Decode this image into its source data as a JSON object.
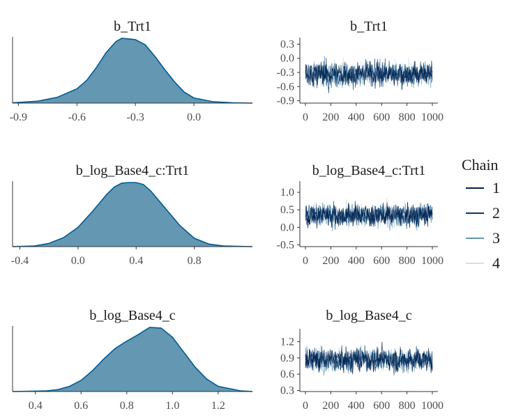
{
  "colors": {
    "density_fill": "#6497b1",
    "density_line": "#005b96",
    "axis": "#333333",
    "text": "#1a1a1a",
    "chains": [
      "#011f4b",
      "#03396c",
      "#6497b1",
      "#d1e1ec"
    ]
  },
  "legend": {
    "title": "Chain",
    "items": [
      {
        "label": "1",
        "color": "#011f4b"
      },
      {
        "label": "2",
        "color": "#03396c"
      },
      {
        "label": "3",
        "color": "#6497b1"
      },
      {
        "label": "4",
        "color": "#d1e1ec"
      }
    ]
  },
  "chart_data": [
    {
      "type": "area",
      "role": "density",
      "title": "b_Trt1",
      "parameter": "b_Trt1",
      "xlim": [
        -0.93,
        0.3
      ],
      "x_ticks": [
        -0.9,
        -0.6,
        -0.3,
        0.0
      ],
      "x_tick_labels": [
        "-0.9",
        "-0.6",
        "-0.3",
        "0.0"
      ],
      "x": [
        -0.93,
        -0.8,
        -0.7,
        -0.6,
        -0.55,
        -0.5,
        -0.45,
        -0.4,
        -0.37,
        -0.33,
        -0.3,
        -0.25,
        -0.2,
        -0.15,
        -0.1,
        -0.05,
        0.0,
        0.1,
        0.2,
        0.3
      ],
      "y": [
        0.005,
        0.03,
        0.09,
        0.22,
        0.35,
        0.55,
        0.78,
        0.95,
        1.0,
        0.99,
        0.98,
        0.9,
        0.72,
        0.52,
        0.33,
        0.17,
        0.08,
        0.02,
        0.005,
        0.0
      ]
    },
    {
      "type": "line",
      "role": "trace",
      "title": "b_Trt1",
      "parameter": "b_Trt1",
      "xlim": [
        0,
        1000
      ],
      "ylim": [
        -0.95,
        0.35
      ],
      "x_ticks": [
        0,
        200,
        400,
        600,
        800,
        1000
      ],
      "x_tick_labels": [
        "0",
        "200",
        "400",
        "600",
        "800",
        "1000"
      ],
      "y_ticks": [
        0.3,
        0.0,
        -0.3,
        -0.6,
        -0.9
      ],
      "y_tick_labels": [
        "0.3",
        "0.0",
        "-0.3",
        "-0.6",
        "-0.9"
      ],
      "iterations": 1000,
      "chains": 4,
      "chain_mean": -0.33,
      "chain_sd": 0.19
    },
    {
      "type": "area",
      "role": "density",
      "title": "b_log_Base4_c:Trt1",
      "parameter": "b_log_Base4_c:Trt1",
      "xlim": [
        -0.45,
        1.2
      ],
      "x_ticks": [
        -0.4,
        0.0,
        0.4,
        0.8
      ],
      "x_tick_labels": [
        "-0.4",
        "0.0",
        "0.4",
        "0.8"
      ],
      "x": [
        -0.45,
        -0.3,
        -0.2,
        -0.1,
        0.0,
        0.1,
        0.2,
        0.25,
        0.3,
        0.35,
        0.4,
        0.45,
        0.5,
        0.6,
        0.7,
        0.8,
        0.9,
        1.0,
        1.2
      ],
      "y": [
        0.0,
        0.01,
        0.05,
        0.14,
        0.3,
        0.55,
        0.82,
        0.93,
        0.99,
        1.0,
        1.0,
        0.97,
        0.87,
        0.6,
        0.33,
        0.13,
        0.04,
        0.01,
        0.0
      ]
    },
    {
      "type": "line",
      "role": "trace",
      "title": "b_log_Base4_c:Trt1",
      "parameter": "b_log_Base4_c:Trt1",
      "xlim": [
        0,
        1000
      ],
      "ylim": [
        -0.55,
        1.2
      ],
      "x_ticks": [
        0,
        200,
        400,
        600,
        800,
        1000
      ],
      "x_tick_labels": [
        "0",
        "200",
        "400",
        "600",
        "800",
        "1000"
      ],
      "y_ticks": [
        1.0,
        0.5,
        0.0,
        -0.5
      ],
      "y_tick_labels": [
        "1.0",
        "0.5",
        "0.0",
        "-0.5"
      ],
      "iterations": 1000,
      "chains": 4,
      "chain_mean": 0.35,
      "chain_sd": 0.24
    },
    {
      "type": "area",
      "role": "density",
      "title": "b_log_Base4_c",
      "parameter": "b_log_Base4_c",
      "xlim": [
        0.3,
        1.35
      ],
      "x_ticks": [
        0.4,
        0.6,
        0.8,
        1.0,
        1.2
      ],
      "x_tick_labels": [
        "0.4",
        "0.6",
        "0.8",
        "1.0",
        "1.2"
      ],
      "x": [
        0.3,
        0.45,
        0.5,
        0.55,
        0.6,
        0.65,
        0.7,
        0.75,
        0.8,
        0.85,
        0.9,
        0.95,
        1.0,
        1.05,
        1.1,
        1.15,
        1.2,
        1.3,
        1.35
      ],
      "y": [
        0.0,
        0.01,
        0.03,
        0.08,
        0.17,
        0.32,
        0.5,
        0.66,
        0.77,
        0.87,
        0.98,
        0.97,
        0.83,
        0.6,
        0.37,
        0.19,
        0.08,
        0.01,
        0.0
      ]
    },
    {
      "type": "line",
      "role": "trace",
      "title": "b_log_Base4_c",
      "parameter": "b_log_Base4_c",
      "xlim": [
        0,
        1000
      ],
      "ylim": [
        0.28,
        1.36
      ],
      "x_ticks": [
        0,
        200,
        400,
        600,
        800,
        1000
      ],
      "x_tick_labels": [
        "0",
        "200",
        "400",
        "600",
        "800",
        "1000"
      ],
      "y_ticks": [
        1.2,
        0.9,
        0.6,
        0.3
      ],
      "y_tick_labels": [
        "1.2",
        "0.9",
        "0.6",
        "0.3"
      ],
      "iterations": 1000,
      "chains": 4,
      "chain_mean": 0.87,
      "chain_sd": 0.16
    }
  ]
}
